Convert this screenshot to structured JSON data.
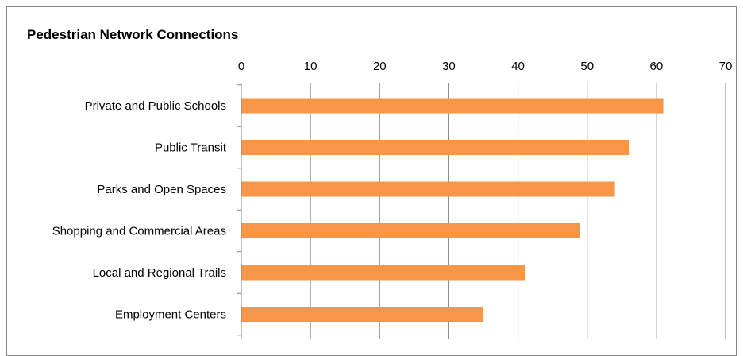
{
  "chart_data": {
    "type": "bar",
    "orientation": "horizontal",
    "title": "Pedestrian Network Connections",
    "categories": [
      "Private and Public Schools",
      "Public Transit",
      "Parks and Open Spaces",
      "Shopping and Commercial Areas",
      "Local and Regional Trails",
      "Employment Centers"
    ],
    "values": [
      61,
      56,
      54,
      49,
      41,
      35
    ],
    "xlim": [
      0,
      70
    ],
    "x_ticks": [
      "0",
      "10",
      "20",
      "30",
      "40",
      "50",
      "60",
      "70"
    ],
    "x_axis_position": "top",
    "grid": true,
    "legend": "none",
    "bar_color": "#F79646",
    "grid_color": "#868686"
  }
}
